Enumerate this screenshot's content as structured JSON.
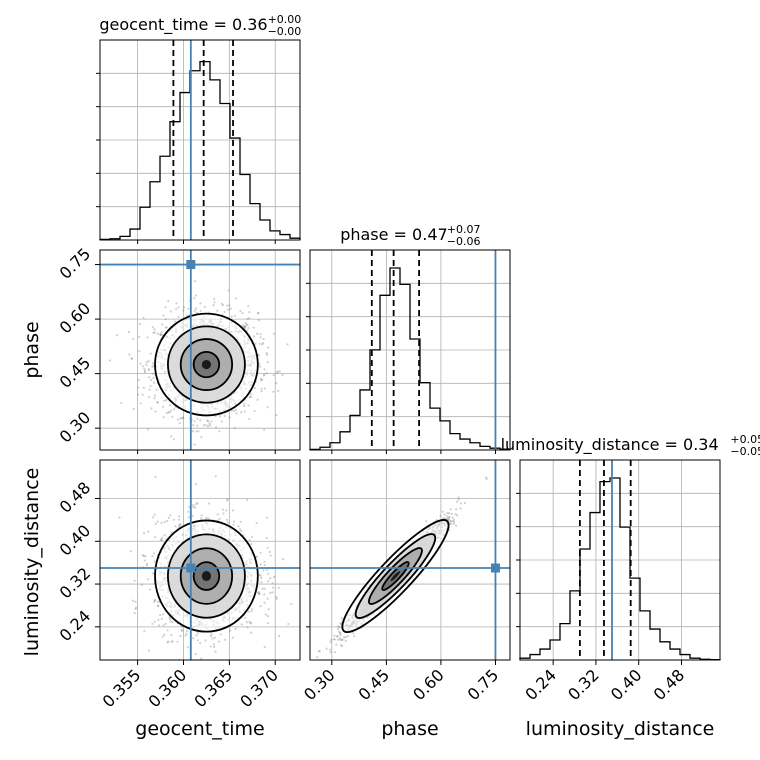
{
  "chart_data": {
    "type": "corner",
    "parameters": [
      "geocent_time",
      "phase",
      "luminosity_distance"
    ],
    "truth": {
      "geocent_time": 0.3608,
      "phase": 0.75,
      "luminosity_distance": 0.35
    },
    "truth_color": "#4682b4",
    "titles": [
      {
        "param": "geocent_time",
        "text": "geocent_time = 0.36",
        "plus": "+0.00",
        "minus": "−0.00"
      },
      {
        "param": "phase",
        "text": "phase = 0.47",
        "plus": "+0.07",
        "minus": "−0.06"
      },
      {
        "param": "luminosity_distance",
        "text": "luminosity_distance = 0.34",
        "plus": "+0.05",
        "minus": "−0.05"
      }
    ],
    "axis_ranges": {
      "geocent_time": [
        0.3509,
        0.3727
      ],
      "phase": [
        0.24,
        0.79
      ],
      "luminosity_distance": [
        0.178,
        0.552
      ]
    },
    "tick_labels": {
      "geocent_time": [
        "0.355",
        "0.360",
        "0.365",
        "0.370"
      ],
      "phase": [
        "0.30",
        "0.45",
        "0.60",
        "0.75"
      ],
      "luminosity_distance": [
        "0.24",
        "0.32",
        "0.40",
        "0.48"
      ]
    },
    "quantiles": {
      "geocent_time": [
        0.3589,
        0.3622,
        0.3654
      ],
      "phase": [
        0.41,
        0.47,
        0.54
      ],
      "luminosity_distance": [
        0.29,
        0.335,
        0.385
      ]
    },
    "marginals": {
      "geocent_time": [
        0.003,
        0.007,
        0.02,
        0.06,
        0.18,
        0.32,
        0.46,
        0.65,
        0.81,
        0.93,
        0.98,
        0.88,
        0.75,
        0.56,
        0.36,
        0.2,
        0.11,
        0.05,
        0.03,
        0.01
      ],
      "phase": [
        0.003,
        0.015,
        0.04,
        0.1,
        0.19,
        0.33,
        0.55,
        0.85,
        1.0,
        0.91,
        0.61,
        0.37,
        0.23,
        0.16,
        0.09,
        0.06,
        0.04,
        0.02,
        0.01,
        0.005
      ],
      "luminosity_distance": [
        0.01,
        0.03,
        0.06,
        0.11,
        0.2,
        0.38,
        0.61,
        0.81,
        0.98,
        1.0,
        0.73,
        0.45,
        0.27,
        0.17,
        0.1,
        0.06,
        0.03,
        0.01,
        0.004,
        0.002
      ]
    },
    "grid": true
  }
}
